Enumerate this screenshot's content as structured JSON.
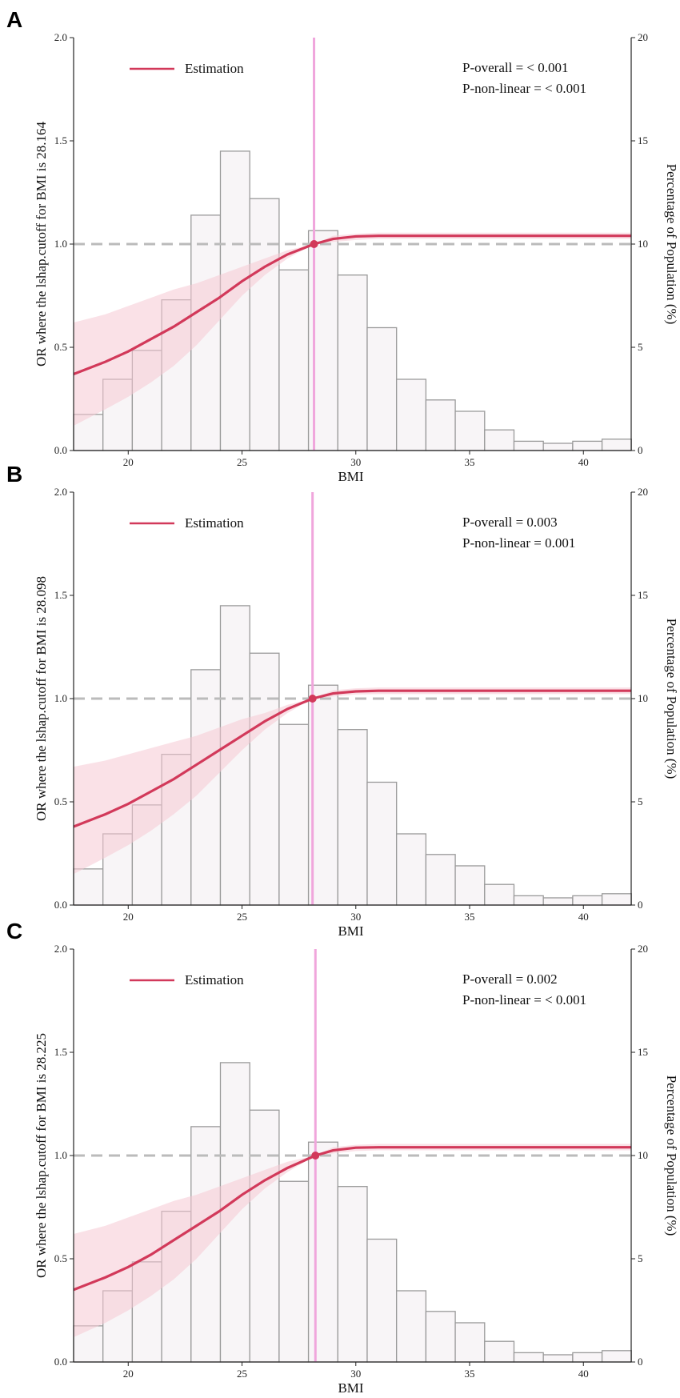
{
  "chart_data": [
    {
      "panel": "A",
      "type": "line+bar",
      "xlabel": "BMI",
      "ylabel_left": "OR where the lshap.cutoff for BMI is 28.164",
      "ylabel_right": "Percentage of Population (%)",
      "cutoff": 28.164,
      "legend": "Estimation",
      "p_overall": "P-overall = < 0.001",
      "p_nonlinear": "P-non-linear = < 0.001",
      "xlim": [
        17.6,
        42.1
      ],
      "xticks": [
        20,
        25,
        30,
        35,
        40
      ],
      "ylim_left": [
        0,
        2.0
      ],
      "yticks_left": [
        "0.0",
        "0.5",
        "1.0",
        "1.5",
        "2.0"
      ],
      "ylim_right": [
        0,
        20
      ],
      "yticks_right": [
        "0",
        "5",
        "10",
        "15",
        "20"
      ],
      "reference_line": 1.0,
      "histogram": {
        "bin_start": 17.6,
        "bin_width": 1.29,
        "percent": [
          1.75,
          3.45,
          4.85,
          7.3,
          11.4,
          14.5,
          12.2,
          8.75,
          10.65,
          8.5,
          5.95,
          3.45,
          2.45,
          1.9,
          1.0,
          0.45,
          0.35,
          0.45,
          0.55
        ]
      },
      "curve": {
        "x": [
          17.6,
          19,
          20,
          21,
          22,
          23,
          24,
          25,
          26,
          27,
          28.164,
          29,
          30,
          31,
          32,
          34,
          36,
          38,
          40,
          42.1
        ],
        "or": [
          0.37,
          0.43,
          0.48,
          0.54,
          0.6,
          0.67,
          0.74,
          0.82,
          0.89,
          0.95,
          1.0,
          1.025,
          1.037,
          1.04,
          1.04,
          1.04,
          1.04,
          1.04,
          1.04,
          1.04
        ],
        "lower": [
          0.12,
          0.2,
          0.26,
          0.33,
          0.41,
          0.51,
          0.63,
          0.75,
          0.85,
          0.93,
          1.0,
          1.01,
          1.02,
          1.025,
          1.025,
          1.025,
          1.025,
          1.025,
          1.025,
          1.025
        ],
        "upper": [
          0.62,
          0.66,
          0.7,
          0.74,
          0.78,
          0.81,
          0.85,
          0.89,
          0.93,
          0.97,
          1.0,
          1.04,
          1.05,
          1.055,
          1.055,
          1.055,
          1.055,
          1.055,
          1.055,
          1.055
        ]
      }
    },
    {
      "panel": "B",
      "type": "line+bar",
      "xlabel": "BMI",
      "ylabel_left": "OR where the lshap.cutoff for BMI is 28.098",
      "ylabel_right": "Percentage of Population (%)",
      "cutoff": 28.098,
      "legend": "Estimation",
      "p_overall": "P-overall = 0.003",
      "p_nonlinear": "P-non-linear = 0.001",
      "xlim": [
        17.6,
        42.1
      ],
      "xticks": [
        20,
        25,
        30,
        35,
        40
      ],
      "ylim_left": [
        0,
        2.0
      ],
      "yticks_left": [
        "0.0",
        "0.5",
        "1.0",
        "1.5",
        "2.0"
      ],
      "ylim_right": [
        0,
        20
      ],
      "yticks_right": [
        "0",
        "5",
        "10",
        "15",
        "20"
      ],
      "reference_line": 1.0,
      "histogram": {
        "bin_start": 17.6,
        "bin_width": 1.29,
        "percent": [
          1.75,
          3.45,
          4.85,
          7.3,
          11.4,
          14.5,
          12.2,
          8.75,
          10.65,
          8.5,
          5.95,
          3.45,
          2.45,
          1.9,
          1.0,
          0.45,
          0.35,
          0.45,
          0.55
        ]
      },
      "curve": {
        "x": [
          17.6,
          19,
          20,
          21,
          22,
          23,
          24,
          25,
          26,
          27,
          28.098,
          29,
          30,
          31,
          32,
          34,
          36,
          38,
          40,
          42.1
        ],
        "or": [
          0.38,
          0.44,
          0.49,
          0.55,
          0.61,
          0.68,
          0.75,
          0.82,
          0.89,
          0.95,
          1.0,
          1.025,
          1.035,
          1.038,
          1.038,
          1.038,
          1.038,
          1.038,
          1.038,
          1.038
        ],
        "lower": [
          0.15,
          0.23,
          0.29,
          0.36,
          0.44,
          0.53,
          0.64,
          0.75,
          0.85,
          0.93,
          1.0,
          1.01,
          1.02,
          1.022,
          1.022,
          1.022,
          1.022,
          1.022,
          1.022,
          1.022
        ],
        "upper": [
          0.67,
          0.7,
          0.73,
          0.76,
          0.79,
          0.82,
          0.86,
          0.9,
          0.93,
          0.97,
          1.0,
          1.04,
          1.05,
          1.054,
          1.054,
          1.054,
          1.054,
          1.054,
          1.054,
          1.054
        ]
      }
    },
    {
      "panel": "C",
      "type": "line+bar",
      "xlabel": "BMI",
      "ylabel_left": "OR where the lshap.cutoff for BMI is 28.225",
      "ylabel_right": "Percentage of Population (%)",
      "cutoff": 28.225,
      "legend": "Estimation",
      "p_overall": "P-overall = 0.002",
      "p_nonlinear": "P-non-linear = < 0.001",
      "xlim": [
        17.6,
        42.1
      ],
      "xticks": [
        20,
        25,
        30,
        35,
        40
      ],
      "ylim_left": [
        0,
        2.0
      ],
      "yticks_left": [
        "0.0",
        "0.5",
        "1.0",
        "1.5",
        "2.0"
      ],
      "ylim_right": [
        0,
        20
      ],
      "yticks_right": [
        "0",
        "5",
        "10",
        "15",
        "20"
      ],
      "reference_line": 1.0,
      "histogram": {
        "bin_start": 17.6,
        "bin_width": 1.29,
        "percent": [
          1.75,
          3.45,
          4.85,
          7.3,
          11.4,
          14.5,
          12.2,
          8.75,
          10.65,
          8.5,
          5.95,
          3.45,
          2.45,
          1.9,
          1.0,
          0.45,
          0.35,
          0.45,
          0.55
        ]
      },
      "curve": {
        "x": [
          17.6,
          19,
          20,
          21,
          22,
          23,
          24,
          25,
          26,
          27,
          28.225,
          29,
          30,
          31,
          32,
          34,
          36,
          38,
          40,
          42.1
        ],
        "or": [
          0.35,
          0.41,
          0.46,
          0.52,
          0.59,
          0.66,
          0.73,
          0.81,
          0.88,
          0.94,
          1.0,
          1.025,
          1.038,
          1.04,
          1.04,
          1.04,
          1.04,
          1.04,
          1.04,
          1.04
        ],
        "lower": [
          0.12,
          0.19,
          0.25,
          0.32,
          0.4,
          0.5,
          0.62,
          0.74,
          0.84,
          0.92,
          1.0,
          1.01,
          1.022,
          1.025,
          1.025,
          1.025,
          1.025,
          1.025,
          1.025,
          1.025
        ],
        "upper": [
          0.62,
          0.66,
          0.7,
          0.74,
          0.78,
          0.81,
          0.85,
          0.89,
          0.93,
          0.97,
          1.0,
          1.04,
          1.052,
          1.056,
          1.056,
          1.056,
          1.056,
          1.056,
          1.056,
          1.056
        ]
      }
    }
  ],
  "colors": {
    "curve": "#d2395a",
    "band": "#f6c9d3",
    "cutoff_line": "#f0a6dc",
    "bar_fill": "#f8f5f7",
    "bar_stroke": "#9a9a9a",
    "ref_line": "#bbbbbb"
  }
}
